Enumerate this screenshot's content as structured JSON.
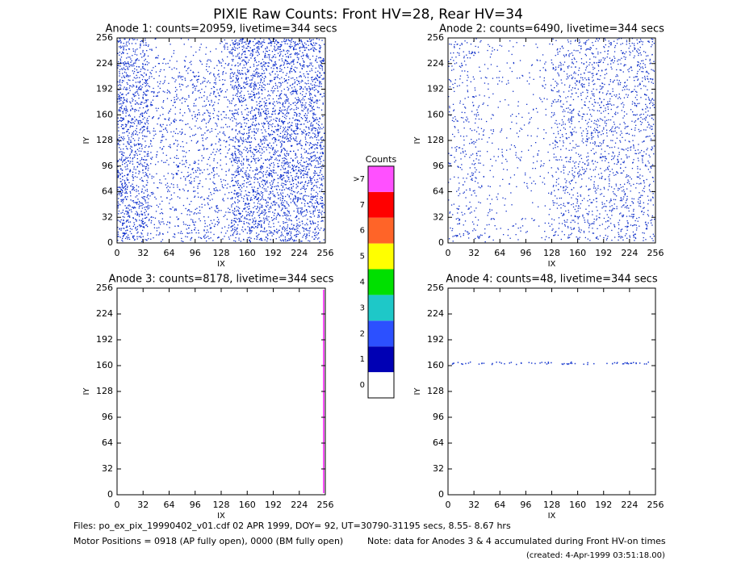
{
  "title": "PIXIE Raw Counts:  Front HV=28, Rear HV=34",
  "chart_data": [
    {
      "type": "image",
      "title": "Anode 1: counts=20959, livetime=344 secs",
      "xlabel": "IX",
      "ylabel": "IY",
      "xlim": [
        0,
        256
      ],
      "ylim": [
        0,
        256
      ],
      "xticks": [
        0,
        32,
        64,
        96,
        128,
        160,
        192,
        224,
        256
      ],
      "yticks": [
        0,
        32,
        64,
        96,
        128,
        160,
        192,
        224,
        256
      ]
    },
    {
      "type": "image",
      "title": "Anode 2: counts=6490, livetime=344 secs",
      "xlabel": "IX",
      "ylabel": "IY",
      "xlim": [
        0,
        256
      ],
      "ylim": [
        0,
        256
      ],
      "xticks": [
        0,
        32,
        64,
        96,
        128,
        160,
        192,
        224,
        256
      ],
      "yticks": [
        0,
        32,
        64,
        96,
        128,
        160,
        192,
        224,
        256
      ]
    },
    {
      "type": "image",
      "title": "Anode 3: counts=8178, livetime=344 secs",
      "xlabel": "IX",
      "ylabel": "IY",
      "xlim": [
        0,
        256
      ],
      "ylim": [
        0,
        256
      ],
      "xticks": [
        0,
        32,
        64,
        96,
        128,
        160,
        192,
        224,
        256
      ],
      "yticks": [
        0,
        32,
        64,
        96,
        128,
        160,
        192,
        224,
        256
      ]
    },
    {
      "type": "image",
      "title": "Anode 4: counts=48, livetime=344 secs",
      "xlabel": "IX",
      "ylabel": "IY",
      "xlim": [
        0,
        256
      ],
      "ylim": [
        0,
        256
      ],
      "xticks": [
        0,
        32,
        64,
        96,
        128,
        160,
        192,
        224,
        256
      ],
      "yticks": [
        0,
        32,
        64,
        96,
        128,
        160,
        192,
        224,
        256
      ]
    }
  ],
  "colorbar": {
    "title": "Counts",
    "labels": [
      "0",
      "1",
      "2",
      "3",
      "4",
      "5",
      "6",
      "7",
      ">7"
    ],
    "colors": [
      "#ffffff",
      "#0000b4",
      "#2c50ff",
      "#1ec8c8",
      "#00e000",
      "#ffff00",
      "#ff6428",
      "#ff0000",
      "#ff50ff"
    ]
  },
  "footer": {
    "files": "Files: po_ex_pix_19990402_v01.cdf   02 APR 1999, DOY= 92, UT=30790-31195 secs,  8.55- 8.67 hrs",
    "motor": "Motor Positions = 0918 (AP fully open), 0000 (BM fully open)",
    "note": "Note: data for Anodes 3 & 4 accumulated during Front HV-on times",
    "created": "(created:  4-Apr-1999 03:51:18.00)"
  }
}
